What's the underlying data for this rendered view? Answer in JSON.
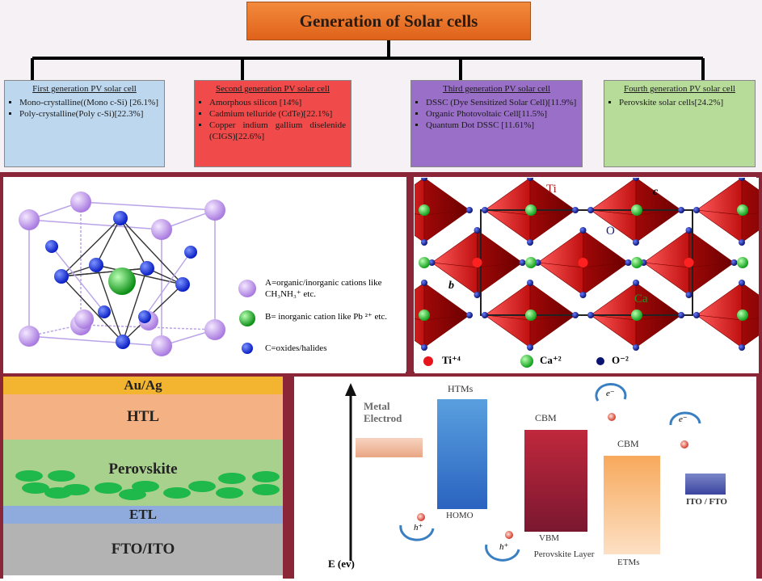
{
  "title": "Generation of Solar cells",
  "generations": [
    {
      "heading": "First generation PV solar cell",
      "items": [
        "Mono-crystalline((Mono c-Si) [26.1%]",
        "Poly-crystalline(Poly c-Si)[22.3%]"
      ],
      "color": "#bdd7ee"
    },
    {
      "heading": "Second generation PV solar cell",
      "items": [
        "Amorphous silicon [14%]",
        "Cadmium telluride (CdTe)[22.1%]",
        "Copper indium gallium diselenide (CIGS)[22.6%]"
      ],
      "color": "#f04a4a"
    },
    {
      "heading": "Third generation PV solar cell",
      "items": [
        "DSSC (Dye Sensitized Solar Cell)[11.9%]",
        "Organic Photovoltaic Cell[11.5%]",
        "Quantum Dot DSSC [11.61%]"
      ],
      "color": "#9a6fc8"
    },
    {
      "heading": "Fourth generation PV solar cell",
      "items": [
        "Perovskite solar cells[24.2%]"
      ],
      "color": "#b7dc9a"
    }
  ],
  "legend_left": {
    "a": "A=organic/inorganic cations like CH₃NH₃⁺ etc.",
    "b": "B= inorganic cation like Pb ²⁺ etc.",
    "c": "C=oxides/halides"
  },
  "legend_right": {
    "ti": "Ti⁺⁴",
    "ca": "Ca⁺²",
    "o": "O⁻²"
  },
  "crystal_labels": {
    "ti": "Ti",
    "o": "O",
    "ca": "Ca",
    "b": "b",
    "c": "c"
  },
  "layers": [
    {
      "label": "Au/Ag",
      "color": "#f3b52f"
    },
    {
      "label": "HTL",
      "color": "#f4b183"
    },
    {
      "label": "Perovskite",
      "color": "#a9d18e"
    },
    {
      "label": "ETL",
      "color": "#8faadc"
    },
    {
      "label": "FTO/ITO",
      "color": "#b3b3b3"
    }
  ],
  "band": {
    "axis": "E (ev)",
    "metal": "Metal Electrod",
    "htms": "HTMs",
    "homo": "HOMO",
    "cbm1": "CBM",
    "vbm": "VBM",
    "cbm2": "CBM",
    "perovskite": "Perovskite Layer",
    "etms": "ETMs",
    "ito": "ITO / FTO",
    "hplus": "h⁺",
    "eminus": "e⁻"
  }
}
